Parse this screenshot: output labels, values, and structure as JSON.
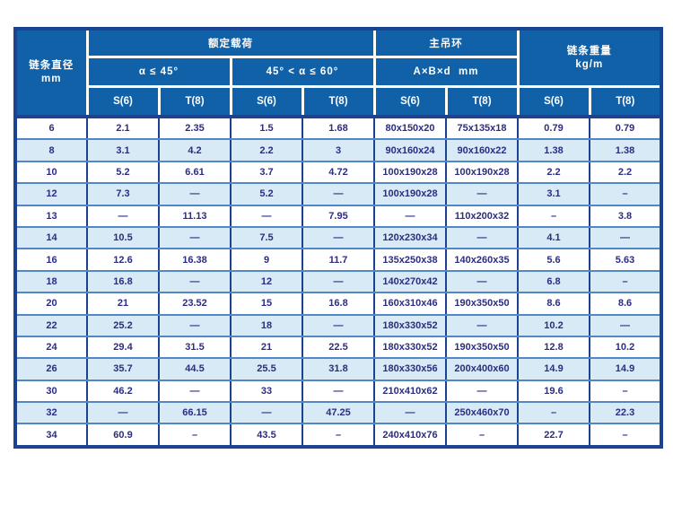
{
  "table": {
    "header": {
      "diameter_line1": "链条直径",
      "diameter_line2": "mm",
      "rated_load": "额定载荷",
      "angle_le_45": "α ≤ 45°",
      "angle_45_60": "45° < α ≤ 60°",
      "main_ring": "主吊环",
      "ring_dims": "A×B×d  mm",
      "chain_weight_line1": "链条重量",
      "chain_weight_line2": "kg/m"
    },
    "subheaders": [
      "S(6)",
      "T(8)",
      "S(6)",
      "T(8)",
      "S(6)",
      "T(8)",
      "S(6)",
      "T(8)"
    ],
    "rows": [
      [
        "6",
        "2.1",
        "2.35",
        "1.5",
        "1.68",
        "80x150x20",
        "75x135x18",
        "0.79",
        "0.79"
      ],
      [
        "8",
        "3.1",
        "4.2",
        "2.2",
        "3",
        "90x160x24",
        "90x160x22",
        "1.38",
        "1.38"
      ],
      [
        "10",
        "5.2",
        "6.61",
        "3.7",
        "4.72",
        "100x190x28",
        "100x190x28",
        "2.2",
        "2.2"
      ],
      [
        "12",
        "7.3",
        "—",
        "5.2",
        "—",
        "100x190x28",
        "—",
        "3.1",
        "–"
      ],
      [
        "13",
        "—",
        "11.13",
        "—",
        "7.95",
        "—",
        "110x200x32",
        "–",
        "3.8"
      ],
      [
        "14",
        "10.5",
        "—",
        "7.5",
        "—",
        "120x230x34",
        "—",
        "4.1",
        "—"
      ],
      [
        "16",
        "12.6",
        "16.38",
        "9",
        "11.7",
        "135x250x38",
        "140x260x35",
        "5.6",
        "5.63"
      ],
      [
        "18",
        "16.8",
        "—",
        "12",
        "—",
        "140x270x42",
        "—",
        "6.8",
        "–"
      ],
      [
        "20",
        "21",
        "23.52",
        "15",
        "16.8",
        "160x310x46",
        "190x350x50",
        "8.6",
        "8.6"
      ],
      [
        "22",
        "25.2",
        "—",
        "18",
        "—",
        "180x330x52",
        "—",
        "10.2",
        "—"
      ],
      [
        "24",
        "29.4",
        "31.5",
        "21",
        "22.5",
        "180x330x52",
        "190x350x50",
        "12.8",
        "10.2"
      ],
      [
        "26",
        "35.7",
        "44.5",
        "25.5",
        "31.8",
        "180x330x56",
        "200x400x60",
        "14.9",
        "14.9"
      ],
      [
        "30",
        "46.2",
        "—",
        "33",
        "—",
        "210x410x62",
        "—",
        "19.6",
        "–"
      ],
      [
        "32",
        "—",
        "66.15",
        "—",
        "47.25",
        "—",
        "250x460x70",
        "–",
        "22.3"
      ],
      [
        "34",
        "60.9",
        "–",
        "43.5",
        "–",
        "240x410x76",
        "–",
        "22.7",
        "–"
      ]
    ],
    "colors": {
      "header_bg": "#1161a9",
      "header_text": "#ffffff",
      "body_text": "#2b2d80",
      "alt_row_bg": "#d9eaf7",
      "column_border": "#1c4390",
      "row_border": "#5187c5",
      "outer_border": "#1c4390"
    }
  }
}
